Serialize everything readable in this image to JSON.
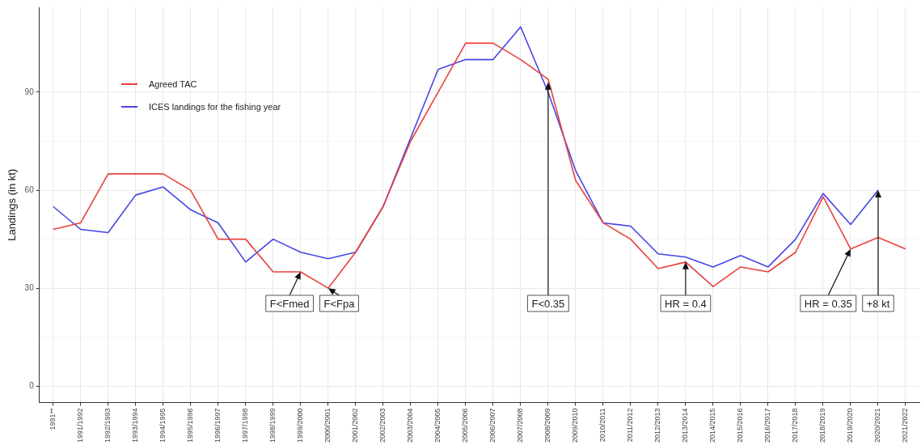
{
  "chart_data": {
    "type": "line",
    "ylabel": "Landings (in kt)",
    "categories": [
      "1991**",
      "1991/1992",
      "1992/1993",
      "1993/1994",
      "1994/1995",
      "1995/1996",
      "1996/1997",
      "1997/1998",
      "1998/1999",
      "1999/2000",
      "2000/2001",
      "2001/2002",
      "2002/2003",
      "2003/2004",
      "2004/2005",
      "2005/2006",
      "2006/2007",
      "2007/2008",
      "2008/2009",
      "2009/2010",
      "2010/2011",
      "2011/2012",
      "2012/2013",
      "2013/2014",
      "2014/2015",
      "2015/2016",
      "2016/2017",
      "2017/2018",
      "2018/2019",
      "2019/2020",
      "2020/2021",
      "2021/2022"
    ],
    "series": [
      {
        "name": "Agreed TAC",
        "color": "#e8413c",
        "values": [
          48,
          50,
          65,
          65,
          65,
          60,
          45,
          45,
          35,
          35,
          30,
          41,
          55,
          75,
          90,
          105,
          105,
          100,
          94,
          63,
          50,
          45,
          36,
          38,
          30.5,
          36.5,
          35,
          41,
          58,
          42,
          45.5,
          42
        ]
      },
      {
        "name": "ICES landings for the fishing year",
        "color": "#4545e6",
        "values": [
          55,
          48,
          47,
          58.5,
          61,
          54,
          50,
          38,
          45,
          41,
          39,
          41,
          55,
          76,
          97,
          100,
          100,
          110,
          90,
          66,
          50,
          49,
          40.5,
          39.5,
          36.5,
          40,
          36.5,
          45,
          59,
          49.5,
          60,
          null
        ]
      }
    ],
    "ylim": [
      -5,
      116
    ],
    "yticks": [
      0,
      30,
      60,
      90
    ],
    "grid": true,
    "legend": "top left",
    "marker": "none",
    "line_style": "solid",
    "annotations": [
      {
        "text": "F<Fmed",
        "x": "1999/2000",
        "y": 35
      },
      {
        "text": "F<Fpa",
        "x": "2000/2001",
        "y": 30
      },
      {
        "text": "F<0.35",
        "x": "2008/2009",
        "y": 93
      },
      {
        "text": "HR = 0.4",
        "x": "2013/2014",
        "y": 38
      },
      {
        "text": "HR = 0.35",
        "x": "2019/2020",
        "y": 42
      },
      {
        "text": "+8 kt",
        "x": "2020/2021",
        "y": 60
      }
    ]
  }
}
